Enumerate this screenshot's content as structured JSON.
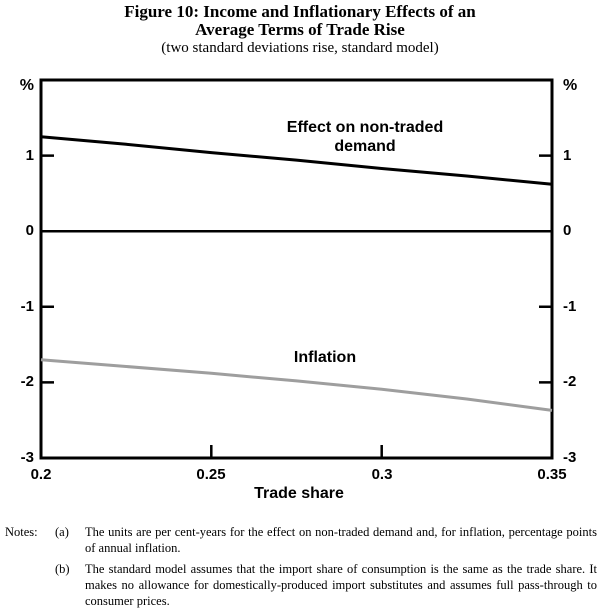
{
  "figure": {
    "title_line1": "Figure 10: Income and Inflationary Effects of an",
    "title_line2": "Average Terms of Trade Rise",
    "subtitle": "(two standard deviations rise, standard model)"
  },
  "chart_data": {
    "type": "line",
    "title": "Figure 10: Income and Inflationary Effects of an Average Terms of Trade Rise",
    "subtitle": "(two standard deviations rise, standard model)",
    "xlabel": "Trade share",
    "y_unit_label": "%",
    "xlim": [
      0.2,
      0.35
    ],
    "ylim": [
      -3,
      2
    ],
    "x": [
      0.2,
      0.225,
      0.25,
      0.275,
      0.3,
      0.325,
      0.35
    ],
    "series": [
      {
        "name": "Effect on non-traded demand",
        "color": "#000000",
        "values": [
          1.25,
          1.15,
          1.04,
          0.94,
          0.83,
          0.73,
          0.62
        ]
      },
      {
        "name": "Inflation",
        "color": "#9e9e9e",
        "values": [
          -1.7,
          -1.79,
          -1.88,
          -1.98,
          -2.09,
          -2.22,
          -2.37
        ]
      }
    ],
    "x_tick_values": [
      0.2,
      0.25,
      0.3,
      0.35
    ],
    "x_tick_labels": [
      "0.2",
      "0.25",
      "0.3",
      "0.35"
    ],
    "x_inner_tick_values": [
      0.25,
      0.3
    ],
    "y_tick_values": [
      1,
      0,
      -1,
      -2,
      -3
    ],
    "y_tick_labels": [
      "1",
      "0",
      "-1",
      "-2",
      "-3"
    ],
    "y_inner_tick_values": [
      1,
      -1,
      -2
    ],
    "zero_line": true,
    "grid": false,
    "legend_position": "inline-labels"
  },
  "notes": {
    "label": "Notes:",
    "items": [
      {
        "marker": "(a)",
        "text": "The units are per cent-years for the effect on non-traded demand and, for inflation, percentage points of annual inflation."
      },
      {
        "marker": "(b)",
        "text": "The standard model assumes that the import share of consumption is the same as the trade share. It makes no allowance for domestically-produced import substitutes and assumes full pass-through to consumer prices."
      }
    ]
  }
}
